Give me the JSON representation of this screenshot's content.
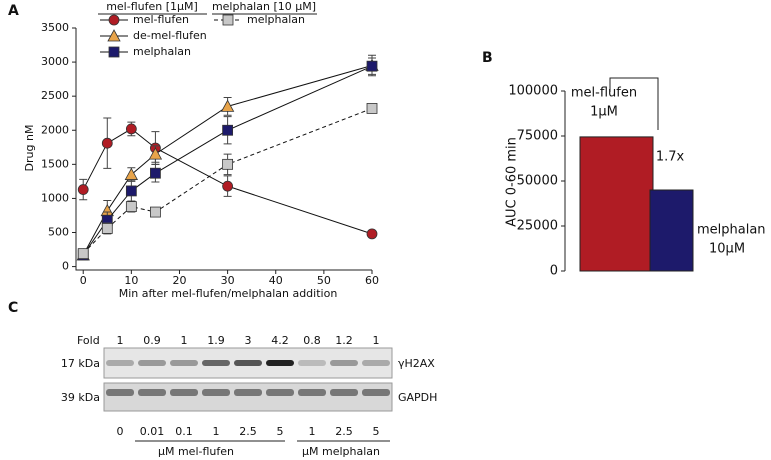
{
  "panel_labels": [
    "A",
    "B",
    "C"
  ],
  "chart_data": [
    {
      "type": "line",
      "x_label": "Min after mel-flufen/melphalan addition",
      "y_label": "Drug nM",
      "legend_groups": [
        "mel-flufen [1µM]",
        "melphalan [10  µM]"
      ],
      "x": [
        0,
        5,
        10,
        15,
        30,
        60
      ],
      "xlim": [
        -1.5,
        60
      ],
      "xticks": [
        0,
        10,
        20,
        30,
        40,
        50,
        60
      ],
      "ylim": [
        -50,
        3500
      ],
      "yticks": [
        0,
        500,
        1000,
        1500,
        2000,
        2500,
        3000,
        3500
      ],
      "series": [
        {
          "name": "mel-flufen",
          "color": "#b01c24",
          "marker": "circle",
          "dashed": false,
          "group": 0,
          "values": [
            1130,
            1810,
            2020,
            1740,
            1180,
            480
          ],
          "errors": [
            150,
            370,
            100,
            240,
            150,
            0
          ]
        },
        {
          "name": "de-mel-flufen",
          "color": "#e8a44a",
          "marker": "triangle",
          "dashed": false,
          "group": 0,
          "values": [
            170,
            820,
            1350,
            1650,
            2350,
            2950
          ],
          "errors": [
            0,
            150,
            100,
            120,
            130,
            150
          ]
        },
        {
          "name": "melphalan",
          "color": "#1d1a6b",
          "marker": "square",
          "dashed": false,
          "group": 0,
          "values": [
            170,
            680,
            1110,
            1370,
            2000,
            2940
          ],
          "errors": [
            0,
            120,
            150,
            130,
            200,
            120
          ]
        },
        {
          "name": "melphalan",
          "color": "#c8c8c8",
          "marker": "square",
          "dashed": true,
          "group": 1,
          "values": [
            190,
            560,
            880,
            800,
            1500,
            2320
          ],
          "errors": [
            0,
            80,
            80,
            0,
            150,
            0
          ]
        }
      ]
    },
    {
      "type": "bar",
      "y_label": "AUC 0-60 min",
      "annotation": "1.7x",
      "categories": [
        "mel-flufen",
        "melphalan"
      ],
      "category_doses": [
        "1μM",
        "10μM"
      ],
      "values": [
        74500,
        45000
      ],
      "colors": [
        "#b01c24",
        "#1d1a6b"
      ],
      "ylim": [
        0,
        100000
      ],
      "yticks": [
        0,
        25000,
        50000,
        75000,
        100000
      ]
    }
  ],
  "blot": {
    "fold_label": "Fold",
    "fold_values": [
      "1",
      "0.9",
      "1",
      "1.9",
      "3",
      "4.2",
      "0.8",
      "1.2",
      "1"
    ],
    "bands": [
      {
        "size": "17 kDa",
        "protein": "γH2AX"
      },
      {
        "size": "39 kDa",
        "protein": "GAPDH"
      }
    ],
    "concentrations": [
      "0",
      "0.01",
      "0.1",
      "1",
      "2.5",
      "5",
      "1",
      "2.5",
      "5"
    ],
    "groups": [
      "μM mel-flufen",
      "μM melphalan"
    ]
  }
}
